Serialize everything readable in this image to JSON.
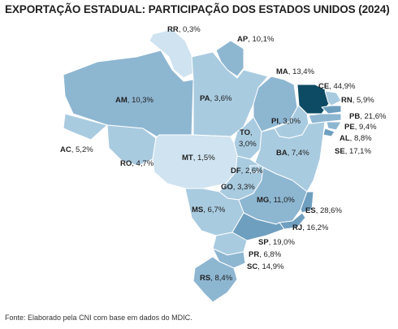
{
  "title": "EXPORTAÇÃO ESTADUAL: PARTICIPAÇÃO DOS ESTADOS UNIDOS (2024)",
  "source": "Fonte: Elaborado pela CNI com base em dados do MDIC.",
  "colors": {
    "c1": "#cfe3f0",
    "c2": "#a9cbe0",
    "c3": "#8db6d1",
    "c4": "#6f9fbf",
    "c5": "#0d4a63"
  },
  "states": {
    "RR": {
      "code": "RR",
      "value": "0,3%",
      "color": "c1"
    },
    "AP": {
      "code": "AP",
      "value": "10,1%",
      "color": "c3"
    },
    "AM": {
      "code": "AM",
      "value": "10,3%",
      "color": "c3"
    },
    "PA": {
      "code": "PA",
      "value": "3,6%",
      "color": "c2"
    },
    "MA": {
      "code": "MA",
      "value": "13,4%",
      "color": "c3"
    },
    "CE": {
      "code": "CE",
      "value": "44,9%",
      "color": "c5"
    },
    "RN": {
      "code": "RN",
      "value": "5,9%",
      "color": "c2"
    },
    "PB": {
      "code": "PB",
      "value": "21,6%",
      "color": "c4"
    },
    "PI": {
      "code": "PI",
      "value": "3,0%",
      "color": "c2"
    },
    "PE": {
      "code": "PE",
      "value": "9,4%",
      "color": "c3"
    },
    "AL": {
      "code": "AL",
      "value": "8,8%",
      "color": "c3"
    },
    "SE": {
      "code": "SE",
      "value": "17,1%",
      "color": "c4"
    },
    "TO": {
      "code": "TO",
      "value": "3,0%",
      "color": "c2"
    },
    "BA": {
      "code": "BA",
      "value": "7,4%",
      "color": "c2"
    },
    "AC": {
      "code": "AC",
      "value": "5,2%",
      "color": "c2"
    },
    "RO": {
      "code": "RO",
      "value": "4,7%",
      "color": "c2"
    },
    "MT": {
      "code": "MT",
      "value": "1,5%",
      "color": "c1"
    },
    "DF": {
      "code": "DF",
      "value": "2,6%",
      "color": "c2"
    },
    "GO": {
      "code": "GO",
      "value": "3,3%",
      "color": "c2"
    },
    "MG": {
      "code": "MG",
      "value": "11,0%",
      "color": "c3"
    },
    "ES": {
      "code": "ES",
      "value": "28,6%",
      "color": "c4"
    },
    "MS": {
      "code": "MS",
      "value": "6,7%",
      "color": "c2"
    },
    "RJ": {
      "code": "RJ",
      "value": "16,2%",
      "color": "c4"
    },
    "SP": {
      "code": "SP",
      "value": "19,0%",
      "color": "c4"
    },
    "PR": {
      "code": "PR",
      "value": "6,8%",
      "color": "c2"
    },
    "SC": {
      "code": "SC",
      "value": "14,9%",
      "color": "c3"
    },
    "RS": {
      "code": "RS",
      "value": "8,4%",
      "color": "c3"
    }
  }
}
